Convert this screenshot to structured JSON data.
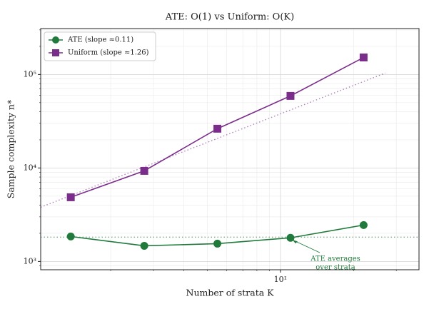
{
  "chart_data": {
    "type": "line",
    "title": "ATE: O(1) vs Uniform: O(K)",
    "x_label": "Number of strata K",
    "y_label": "Sample complexity n*",
    "log_x": true,
    "log_y": true,
    "grid": true,
    "legend": "upper left",
    "x": [
      1.37,
      2.75,
      5.5,
      11,
      22
    ],
    "series": [
      {
        "name": "ATE (slope ≈0.11)",
        "color": "#217a3c",
        "marker": "circle",
        "values": [
          1850,
          1470,
          1550,
          1790,
          2450
        ]
      },
      {
        "name": "Uniform (slope ≈1.26)",
        "color": "#7b2d8b",
        "marker": "square",
        "values": [
          4860,
          9310,
          26300,
          59000,
          152000
        ]
      }
    ],
    "reference_lines": [
      {
        "color": "#217a3c",
        "x": [
          1.03,
          37.2
        ],
        "values": [
          1820,
          1820
        ]
      },
      {
        "color": "#7b2d8b",
        "x": [
          1.03,
          27
        ],
        "values": [
          3800,
          103500
        ]
      }
    ],
    "annotation": {
      "lines": [
        "ATE averages",
        "over strata"
      ],
      "color": "#217a3c"
    },
    "xlim": [
      1.03,
      37.2
    ],
    "ylim": [
      815,
      310000
    ],
    "xticks": [
      {
        "value": 10,
        "label": "10¹"
      }
    ],
    "yticks": [
      {
        "value": 1000,
        "label": "10³"
      },
      {
        "value": 10000,
        "label": "10⁴"
      },
      {
        "value": 100000,
        "label": "10⁵"
      }
    ]
  }
}
